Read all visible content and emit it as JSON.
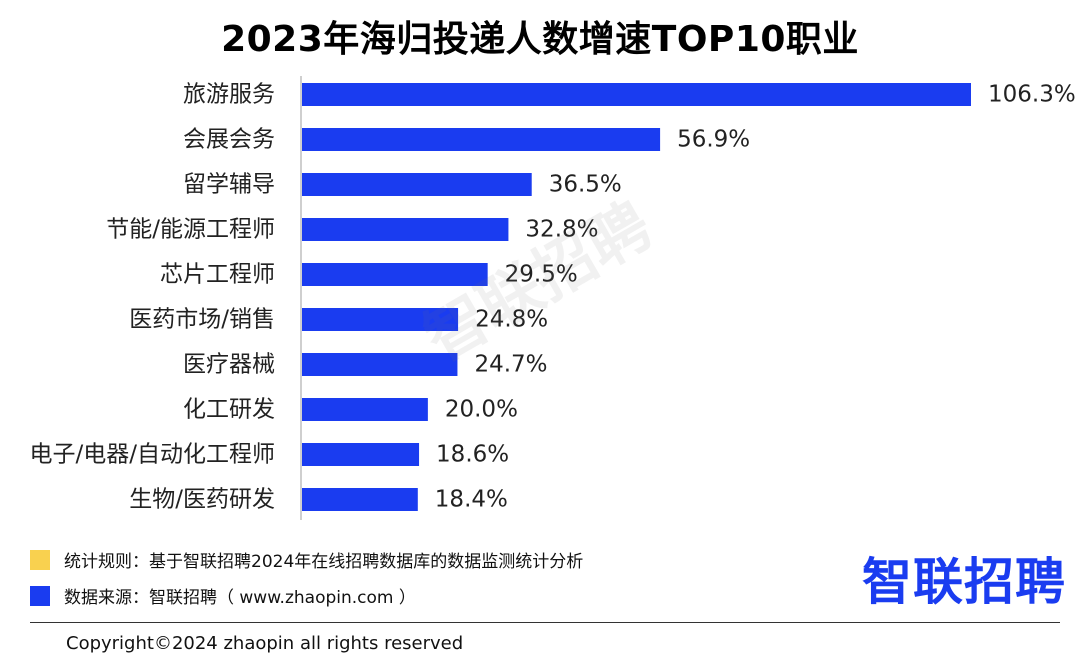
{
  "title": "2023年海归投递人数增速TOP10职业",
  "watermark": "智联招聘",
  "legend": [
    {
      "text": "统计规则：基于智联招聘2024年在线招聘数据库的数据监测统计分析",
      "color": "#f9d14f"
    },
    {
      "text": "数据来源：智联招聘（ www.zhaopin.com ）",
      "color": "#1a3cf0"
    }
  ],
  "brand_logo": "智联招聘",
  "copyright": "Copyright©2024 zhaopin all rights reserved",
  "chart_data": {
    "type": "bar",
    "orientation": "horizontal",
    "title": "2023年海归投递人数增速TOP10职业",
    "categories": [
      "旅游服务",
      "会展会务",
      "留学辅导",
      "节能/能源工程师",
      "芯片工程师",
      "医药市场/销售",
      "医疗器械",
      "化工研发",
      "电子/电器/自动化工程师",
      "生物/医药研发"
    ],
    "values": [
      106.3,
      56.9,
      36.5,
      32.8,
      29.5,
      24.8,
      24.7,
      20.0,
      18.6,
      18.4
    ],
    "value_labels": [
      "106.3%",
      "56.9%",
      "36.5%",
      "32.8%",
      "29.5%",
      "24.8%",
      "24.7%",
      "20.0%",
      "18.6%",
      "18.4%"
    ],
    "unit": "%",
    "bar_color": "#1a3cf0",
    "xlim": [
      0,
      106.3
    ],
    "grid": false,
    "xaxis_visible": false
  }
}
